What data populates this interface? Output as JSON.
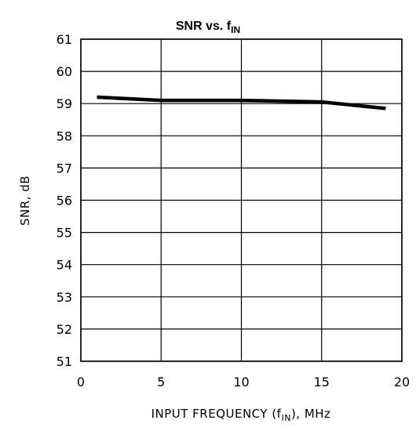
{
  "chart_data": {
    "type": "line",
    "title": {
      "main": "SNR vs. f",
      "sub": "IN"
    },
    "xlabel": {
      "prefix": "INPUT FREQUENCY (f",
      "sub": "IN",
      "suffix": "), MHz"
    },
    "ylabel": "SNR, dB",
    "xlim": [
      0,
      20
    ],
    "ylim": [
      51,
      61
    ],
    "xticks": [
      "0",
      "5",
      "10",
      "15",
      "20"
    ],
    "yticks": [
      "61",
      "60",
      "59",
      "58",
      "57",
      "56",
      "55",
      "54",
      "53",
      "52",
      "51"
    ],
    "grid": true,
    "series": [
      {
        "x": [
          1,
          5,
          10,
          15,
          19
        ],
        "y": [
          59.2,
          59.1,
          59.1,
          59.05,
          58.85
        ]
      }
    ]
  },
  "colors": {
    "line": "#000000",
    "grid": "#000000",
    "background": "#ffffff"
  }
}
